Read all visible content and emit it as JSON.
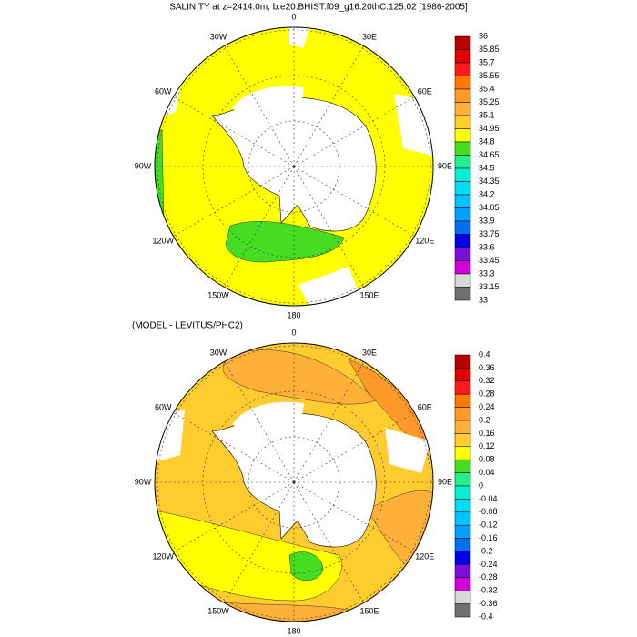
{
  "maps": [
    {
      "title": "SALINITY at z=2414.0m, b.e20.BHIST.f09_g16.20thC.125.02 [1986-2005]",
      "longitudes": [
        "0",
        "30E",
        "60E",
        "90E",
        "120E",
        "150E",
        "180",
        "150W",
        "120W",
        "90W",
        "60W",
        "30W"
      ],
      "colorbar": {
        "levels": [
          36,
          35.85,
          35.7,
          35.55,
          35.4,
          35.25,
          35.1,
          34.95,
          34.8,
          34.65,
          34.5,
          34.35,
          34.2,
          34.05,
          33.9,
          33.75,
          33.6,
          33.45,
          33.3,
          33.15,
          33
        ],
        "colors": [
          "#b80000",
          "#e00000",
          "#ff1a1a",
          "#ff7a00",
          "#ff9a2a",
          "#ffb038",
          "#ffcc30",
          "#ffff00",
          "#44dd22",
          "#22f08a",
          "#00f0d0",
          "#00dcf0",
          "#00c4ff",
          "#00a0ff",
          "#0070f0",
          "#0000e8",
          "#7a10d8",
          "#d000d8",
          "#d8d8d8",
          "#707070"
        ]
      }
    },
    {
      "title": "(MODEL - LEVITUS/PHC2)",
      "longitudes": [
        "0",
        "30E",
        "60E",
        "90E",
        "120E",
        "150E",
        "180",
        "150W",
        "120W",
        "90W",
        "60W",
        "30W"
      ],
      "colorbar": {
        "levels": [
          0.4,
          0.36,
          0.32,
          0.28,
          0.24,
          0.2,
          0.16,
          0.12,
          0.08,
          0.04,
          0,
          -0.04,
          -0.08,
          -0.12,
          -0.16,
          -0.2,
          -0.24,
          -0.28,
          -0.32,
          -0.36,
          -0.4
        ],
        "colors": [
          "#b80000",
          "#e00000",
          "#ff1a1a",
          "#ff7a00",
          "#ff9a2a",
          "#ffb038",
          "#ffcc30",
          "#ffff00",
          "#44dd22",
          "#22f08a",
          "#00f0d0",
          "#00dcf0",
          "#00c4ff",
          "#00a0ff",
          "#0070f0",
          "#0000e8",
          "#7a10d8",
          "#d000d8",
          "#d8d8d8",
          "#707070"
        ]
      }
    }
  ]
}
